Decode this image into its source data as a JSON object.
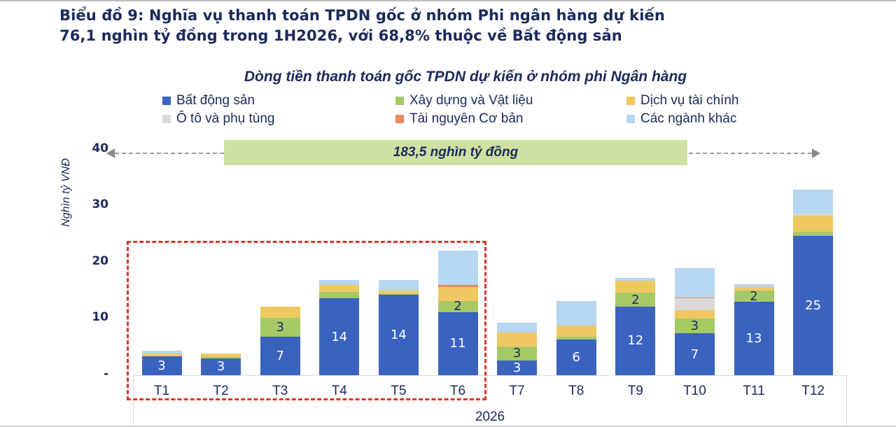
{
  "headline": {
    "line1": "Biểu đồ 9: Nghĩa vụ thanh toán TPDN gốc ở nhóm Phi ngân hàng dự kiến",
    "line2": "76,1 nghìn tỷ đồng trong 1H2026, với 68,8% thuộc về Bất động sản"
  },
  "chart_data": {
    "type": "bar",
    "stacked": true,
    "title": "Dòng tiền thanh toán gốc TPDN dự kiến ở nhóm phi Ngân hàng",
    "xlabel": "2026",
    "ylabel": "Nghìn tỷ VNĐ",
    "ylim": [
      0,
      40
    ],
    "yticks": [
      "-",
      "10",
      "20",
      "30",
      "40"
    ],
    "grid": false,
    "legend_position": "top",
    "categories": [
      "T1",
      "T2",
      "T3",
      "T4",
      "T5",
      "T6",
      "T7",
      "T8",
      "T9",
      "T10",
      "T11",
      "T12"
    ],
    "series": [
      {
        "name": "Bất động sản",
        "color": "#3a63c0",
        "values": [
          3.3,
          3.0,
          6.8,
          13.6,
          14.3,
          11.2,
          2.6,
          6.3,
          12.2,
          7.4,
          13.0,
          24.7
        ],
        "labels": [
          "3",
          "3",
          "7",
          "14",
          "14",
          "11",
          "3",
          "6",
          "12",
          "7",
          "13",
          "25"
        ]
      },
      {
        "name": "Xây dựng và Vật liệu",
        "color": "#a5c965",
        "values": [
          0.0,
          0.2,
          3.4,
          1.2,
          0.1,
          2.0,
          2.5,
          0.5,
          2.4,
          2.6,
          2.0,
          0.7
        ],
        "labels": [
          "",
          "",
          "3",
          "",
          "",
          "2",
          "3",
          "",
          "2",
          "3",
          "2",
          ""
        ]
      },
      {
        "name": "Dịch vụ tài chính",
        "color": "#efc862",
        "values": [
          0.5,
          0.6,
          2.0,
          1.2,
          0.6,
          2.4,
          2.5,
          2.0,
          2.1,
          1.6,
          0.6,
          2.9
        ],
        "labels": []
      },
      {
        "name": "Ô tô và phụ tùng",
        "color": "#d9d9d9",
        "values": [
          0,
          0,
          0,
          0,
          0,
          0,
          0,
          0,
          0,
          2.1,
          0,
          0.4
        ],
        "labels": []
      },
      {
        "name": "Tài nguyên Cơ bản",
        "color": "#e58a5c",
        "values": [
          0,
          0,
          0,
          0,
          0,
          0.4,
          0,
          0,
          0,
          0.1,
          0,
          0
        ],
        "labels": []
      },
      {
        "name": "Các ngành khác",
        "color": "#b7d6f2",
        "values": [
          0.5,
          0.0,
          0.0,
          0.9,
          1.9,
          6.1,
          1.7,
          4.3,
          0.5,
          5.2,
          0.5,
          4.2
        ],
        "labels": []
      }
    ],
    "annotations": [
      {
        "text": "183,5 nghìn tỷ đồng",
        "type": "span-band",
        "from": "T1",
        "to": "T12"
      },
      {
        "text": "",
        "type": "dashed-highlight-box",
        "from": "T1",
        "to": "T6",
        "color": "#e0362a"
      }
    ]
  },
  "y_ticks": [
    {
      "label": "40",
      "value": 40
    },
    {
      "label": "30",
      "value": 30
    },
    {
      "label": "20",
      "value": 20
    },
    {
      "label": "10",
      "value": 10
    },
    {
      "label": "-",
      "value": 0
    }
  ]
}
